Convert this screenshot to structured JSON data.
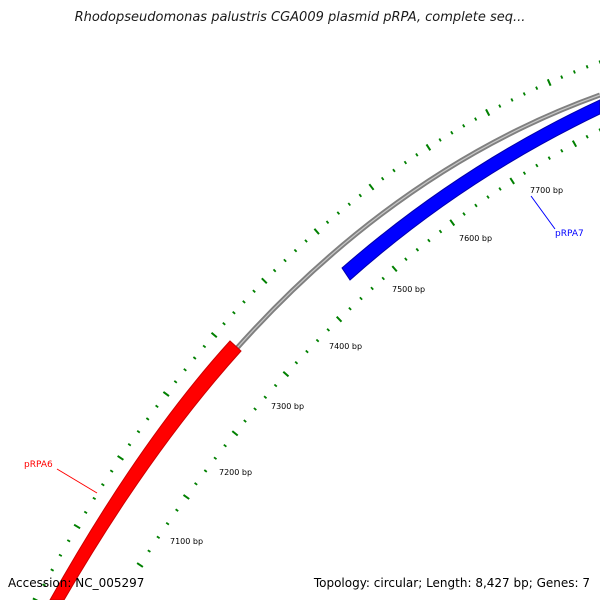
{
  "title": "Rhodopseudomonas palustris CGA009 plasmid pRPA, complete seq...",
  "footer": {
    "accession": "Accession: NC_005297",
    "summary": "Topology: circular; Length: 8,427 bp; Genes: 7"
  },
  "ticks": [
    {
      "label": "7100 bp"
    },
    {
      "label": "7200 bp"
    },
    {
      "label": "7300 bp"
    },
    {
      "label": "7400 bp"
    },
    {
      "label": "7500 bp"
    },
    {
      "label": "7600 bp"
    },
    {
      "label": "7700 bp"
    }
  ],
  "genes": [
    {
      "name": "pRPA6",
      "color": "#ff0000"
    },
    {
      "name": "pRPA7",
      "color": "#0000ff"
    }
  ],
  "colors": {
    "backbone": "#808080",
    "tick": "#008000",
    "gene_forward": "#ff0000",
    "gene_reverse": "#0000ff"
  }
}
